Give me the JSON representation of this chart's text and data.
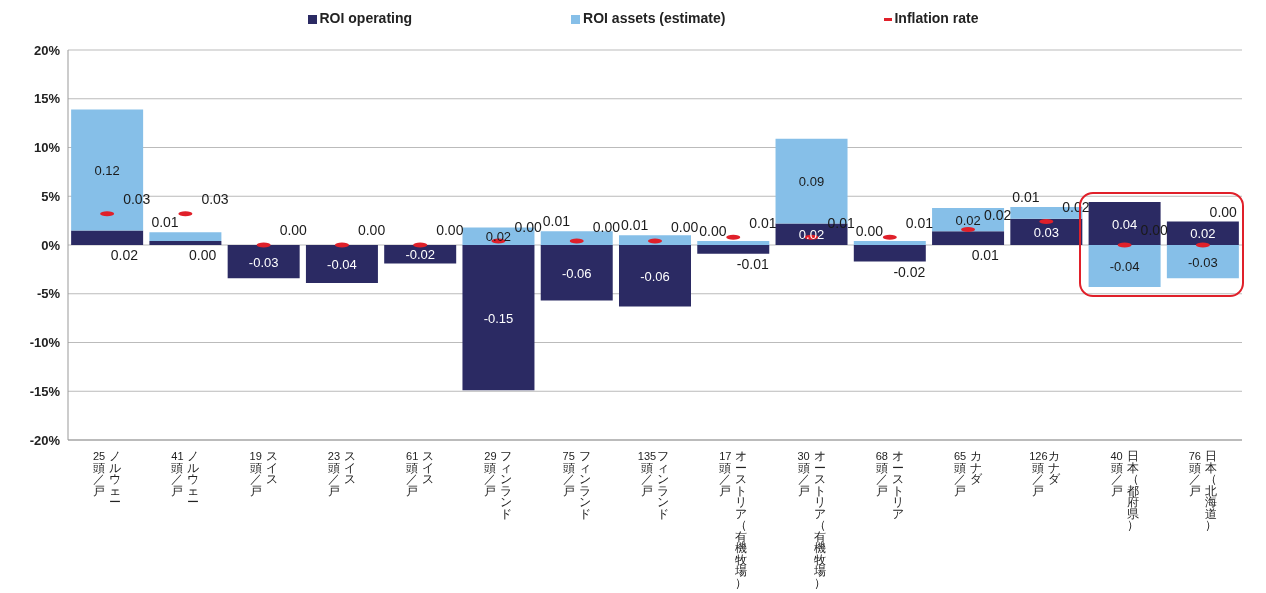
{
  "chart_data": {
    "type": "bar",
    "stacked": true,
    "categories": [
      "25頭／戸ノルウェー",
      "41頭／戸ノルウェー",
      "19頭／戸スイス",
      "23頭／戸スイス",
      "61頭／戸スイス",
      "29頭／戸フィンランド",
      "75頭／戸フィンランド",
      "135頭／戸フィンランド",
      "17頭／戸オーストリア（有機牧場）",
      "30頭／戸オーストリア（有機牧場）",
      "68頭／戸オーストリア",
      "65頭／戸カナダ",
      "126頭／戸カナダ",
      "40頭／戸日本（都府県）",
      "76頭／戸日本（北海道）"
    ],
    "series": [
      {
        "name": "ROI operating",
        "color": "#2b2a63",
        "values": [
          0.015,
          0.004,
          -0.034,
          -0.039,
          -0.019,
          -0.149,
          -0.057,
          -0.063,
          -0.009,
          0.022,
          -0.017,
          0.014,
          0.027,
          0.044,
          0.024
        ],
        "value_labels": [
          "0.02",
          "0.00",
          "-0.03",
          "-0.04",
          "-0.02",
          "-0.15",
          "-0.06",
          "-0.06",
          "-0.01",
          "0.02",
          "-0.02",
          "0.01",
          "0.03",
          "0.04",
          "0.02"
        ]
      },
      {
        "name": "ROI assets (estimate)",
        "color": "#86bfe8",
        "values": [
          0.124,
          0.009,
          null,
          null,
          null,
          0.018,
          0.014,
          0.01,
          0.004,
          0.087,
          0.004,
          0.024,
          0.012,
          -0.043,
          -0.034
        ],
        "value_labels": [
          "0.12",
          "0.01",
          null,
          null,
          null,
          "0.02",
          "0.01",
          "0.01",
          "0.00",
          "0.09",
          "0.00",
          "0.02",
          "0.01",
          "-0.04",
          "-0.03"
        ]
      },
      {
        "name": "Inflation rate",
        "type": "scatter",
        "color": "#e0202a",
        "values": [
          0.032,
          0.032,
          0,
          0,
          0,
          0.004,
          0.004,
          0.004,
          0.008,
          0.008,
          0.008,
          0.016,
          0.024,
          0,
          0
        ],
        "value_labels": [
          "0.03",
          "0.03",
          "0.00",
          "0.00",
          "0.00",
          "0.00",
          "0.00",
          "0.00",
          "0.01",
          "0.01",
          "0.01",
          "0.02",
          "0.02",
          "0.00",
          "0.00"
        ]
      }
    ],
    "ylim": [
      -0.2,
      0.2
    ],
    "yticks": [
      {
        "value": -0.2,
        "label": "-20%"
      },
      {
        "value": -0.15,
        "label": "-15%"
      },
      {
        "value": -0.1,
        "label": "-10%"
      },
      {
        "value": -0.05,
        "label": "-5%"
      },
      {
        "value": 0,
        "label": "0%"
      },
      {
        "value": 0.05,
        "label": "5%"
      },
      {
        "value": 0.1,
        "label": "10%"
      },
      {
        "value": 0.15,
        "label": "15%"
      },
      {
        "value": 0.2,
        "label": "20%"
      }
    ],
    "grid": "y",
    "legend": "top"
  }
}
